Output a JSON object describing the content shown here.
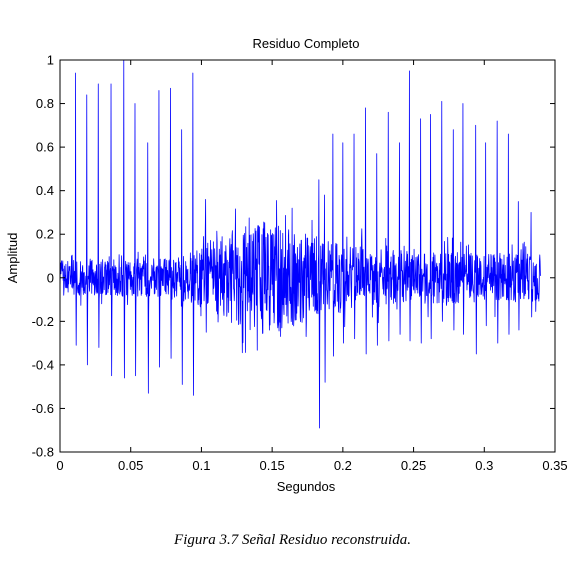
{
  "caption": "Figura 3.7 Señal Residuo reconstruida.",
  "chart_data": {
    "type": "line",
    "title": "Residuo Completo",
    "xlabel": "Segundos",
    "ylabel": "Amplitud",
    "xlim": [
      0,
      0.35
    ],
    "ylim": [
      -0.8,
      1
    ],
    "xticks": [
      0,
      0.05,
      0.1,
      0.15,
      0.2,
      0.25,
      0.3,
      0.35
    ],
    "xtick_labels": [
      "0",
      "0.05",
      "0.1",
      "0.15",
      "0.2",
      "0.25",
      "0.3",
      "0.35"
    ],
    "yticks": [
      -0.8,
      -0.6,
      -0.4,
      -0.2,
      0,
      0.2,
      0.4,
      0.6,
      0.8,
      1
    ],
    "ytick_labels": [
      "-0.8",
      "-0.6",
      "-0.4",
      "-0.2",
      "0",
      "0.2",
      "0.4",
      "0.6",
      "0.8",
      "1"
    ],
    "grid": false,
    "line_color": "#0000ff",
    "duration_s": 0.34,
    "spikes": [
      {
        "t": 0.011,
        "pos": 0.94,
        "neg": -0.31
      },
      {
        "t": 0.019,
        "pos": 0.84,
        "neg": -0.4
      },
      {
        "t": 0.027,
        "pos": 0.89,
        "neg": -0.32
      },
      {
        "t": 0.036,
        "pos": 0.89,
        "neg": -0.45
      },
      {
        "t": 0.045,
        "pos": 1.0,
        "neg": -0.46
      },
      {
        "t": 0.053,
        "pos": 0.8,
        "neg": -0.45
      },
      {
        "t": 0.062,
        "pos": 0.62,
        "neg": -0.53
      },
      {
        "t": 0.07,
        "pos": 0.86,
        "neg": -0.41
      },
      {
        "t": 0.078,
        "pos": 0.87,
        "neg": -0.37
      },
      {
        "t": 0.086,
        "pos": 0.68,
        "neg": -0.49
      },
      {
        "t": 0.094,
        "pos": 0.94,
        "neg": -0.54
      },
      {
        "t": 0.103,
        "pos": 0.36,
        "neg": -0.25
      },
      {
        "t": 0.183,
        "pos": 0.45,
        "neg": -0.69
      },
      {
        "t": 0.187,
        "pos": 0.38,
        "neg": -0.48
      },
      {
        "t": 0.193,
        "pos": 0.66,
        "neg": -0.36
      },
      {
        "t": 0.2,
        "pos": 0.62,
        "neg": -0.3
      },
      {
        "t": 0.208,
        "pos": 0.66,
        "neg": -0.28
      },
      {
        "t": 0.216,
        "pos": 0.78,
        "neg": -0.35
      },
      {
        "t": 0.224,
        "pos": 0.57,
        "neg": -0.31
      },
      {
        "t": 0.232,
        "pos": 0.76,
        "neg": -0.29
      },
      {
        "t": 0.24,
        "pos": 0.62,
        "neg": -0.26
      },
      {
        "t": 0.247,
        "pos": 0.95,
        "neg": -0.29
      },
      {
        "t": 0.255,
        "pos": 0.73,
        "neg": -0.3
      },
      {
        "t": 0.262,
        "pos": 0.75,
        "neg": -0.28
      },
      {
        "t": 0.27,
        "pos": 0.81,
        "neg": -0.2
      },
      {
        "t": 0.278,
        "pos": 0.68,
        "neg": -0.24
      },
      {
        "t": 0.285,
        "pos": 0.8,
        "neg": -0.26
      },
      {
        "t": 0.294,
        "pos": 0.7,
        "neg": -0.35
      },
      {
        "t": 0.301,
        "pos": 0.62,
        "neg": -0.22
      },
      {
        "t": 0.309,
        "pos": 0.72,
        "neg": -0.3
      },
      {
        "t": 0.317,
        "pos": 0.66,
        "neg": -0.26
      },
      {
        "t": 0.324,
        "pos": 0.35,
        "neg": -0.24
      },
      {
        "t": 0.333,
        "pos": 0.3,
        "neg": -0.18
      }
    ],
    "noise_envelope": [
      {
        "t": 0.0,
        "amp": 0.08
      },
      {
        "t": 0.08,
        "amp": 0.09
      },
      {
        "t": 0.1,
        "amp": 0.14
      },
      {
        "t": 0.11,
        "amp": 0.2
      },
      {
        "t": 0.14,
        "amp": 0.26
      },
      {
        "t": 0.16,
        "amp": 0.24
      },
      {
        "t": 0.18,
        "amp": 0.2
      },
      {
        "t": 0.2,
        "amp": 0.15
      },
      {
        "t": 0.25,
        "amp": 0.12
      },
      {
        "t": 0.34,
        "amp": 0.11
      }
    ]
  }
}
